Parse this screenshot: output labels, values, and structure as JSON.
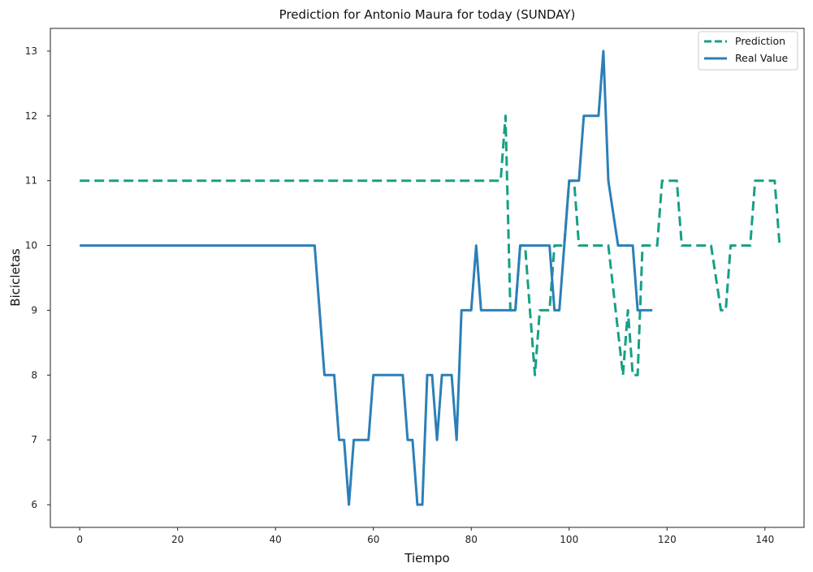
{
  "chart_data": {
    "type": "line",
    "title": "Prediction for Antonio Maura for today (SUNDAY)",
    "xlabel": "Tiempo",
    "ylabel": "Bicicletas",
    "xlim": [
      -6,
      148
    ],
    "ylim": [
      5.65,
      13.35
    ],
    "xticks": [
      0,
      20,
      40,
      60,
      80,
      100,
      120,
      140
    ],
    "yticks": [
      6,
      7,
      8,
      9,
      10,
      11,
      12,
      13
    ],
    "grid": false,
    "legend_position": "upper right",
    "series": [
      {
        "name": "Prediction",
        "color": "#16a085",
        "style": "dashed",
        "points": [
          [
            0,
            11
          ],
          [
            86,
            11
          ],
          [
            87,
            12
          ],
          [
            88,
            9
          ],
          [
            89,
            9
          ],
          [
            90,
            10
          ],
          [
            91,
            10
          ],
          [
            92,
            9
          ],
          [
            93,
            8
          ],
          [
            94,
            9
          ],
          [
            96,
            9
          ],
          [
            97,
            10
          ],
          [
            99,
            10
          ],
          [
            100,
            11
          ],
          [
            101,
            11
          ],
          [
            102,
            10
          ],
          [
            108,
            10
          ],
          [
            111,
            8
          ],
          [
            112,
            9
          ],
          [
            113,
            8
          ],
          [
            114,
            8
          ],
          [
            115,
            10
          ],
          [
            118,
            10
          ],
          [
            119,
            11
          ],
          [
            122,
            11
          ],
          [
            123,
            10
          ],
          [
            129,
            10
          ],
          [
            131,
            9
          ],
          [
            132,
            9
          ],
          [
            133,
            10
          ],
          [
            137,
            10
          ],
          [
            138,
            11
          ],
          [
            142,
            11
          ],
          [
            143,
            10
          ]
        ]
      },
      {
        "name": "Real Value",
        "color": "#2b7fb8",
        "style": "solid",
        "points": [
          [
            0,
            10
          ],
          [
            48,
            10
          ],
          [
            50,
            8
          ],
          [
            52,
            8
          ],
          [
            53,
            7
          ],
          [
            54,
            7
          ],
          [
            55,
            6
          ],
          [
            56,
            7
          ],
          [
            59,
            7
          ],
          [
            60,
            8
          ],
          [
            66,
            8
          ],
          [
            67,
            7
          ],
          [
            68,
            7
          ],
          [
            69,
            6
          ],
          [
            70,
            6
          ],
          [
            71,
            8
          ],
          [
            72,
            8
          ],
          [
            73,
            7
          ],
          [
            74,
            8
          ],
          [
            76,
            8
          ],
          [
            77,
            7
          ],
          [
            78,
            9
          ],
          [
            80,
            9
          ],
          [
            81,
            10
          ],
          [
            82,
            9
          ],
          [
            88,
            9
          ],
          [
            89,
            9
          ],
          [
            90,
            10
          ],
          [
            96,
            10
          ],
          [
            97,
            9
          ],
          [
            98,
            9
          ],
          [
            100,
            11
          ],
          [
            102,
            11
          ],
          [
            103,
            12
          ],
          [
            106,
            12
          ],
          [
            107,
            13
          ],
          [
            108,
            11
          ],
          [
            110,
            10
          ],
          [
            113,
            10
          ],
          [
            114,
            9
          ],
          [
            117,
            9
          ]
        ]
      }
    ]
  }
}
